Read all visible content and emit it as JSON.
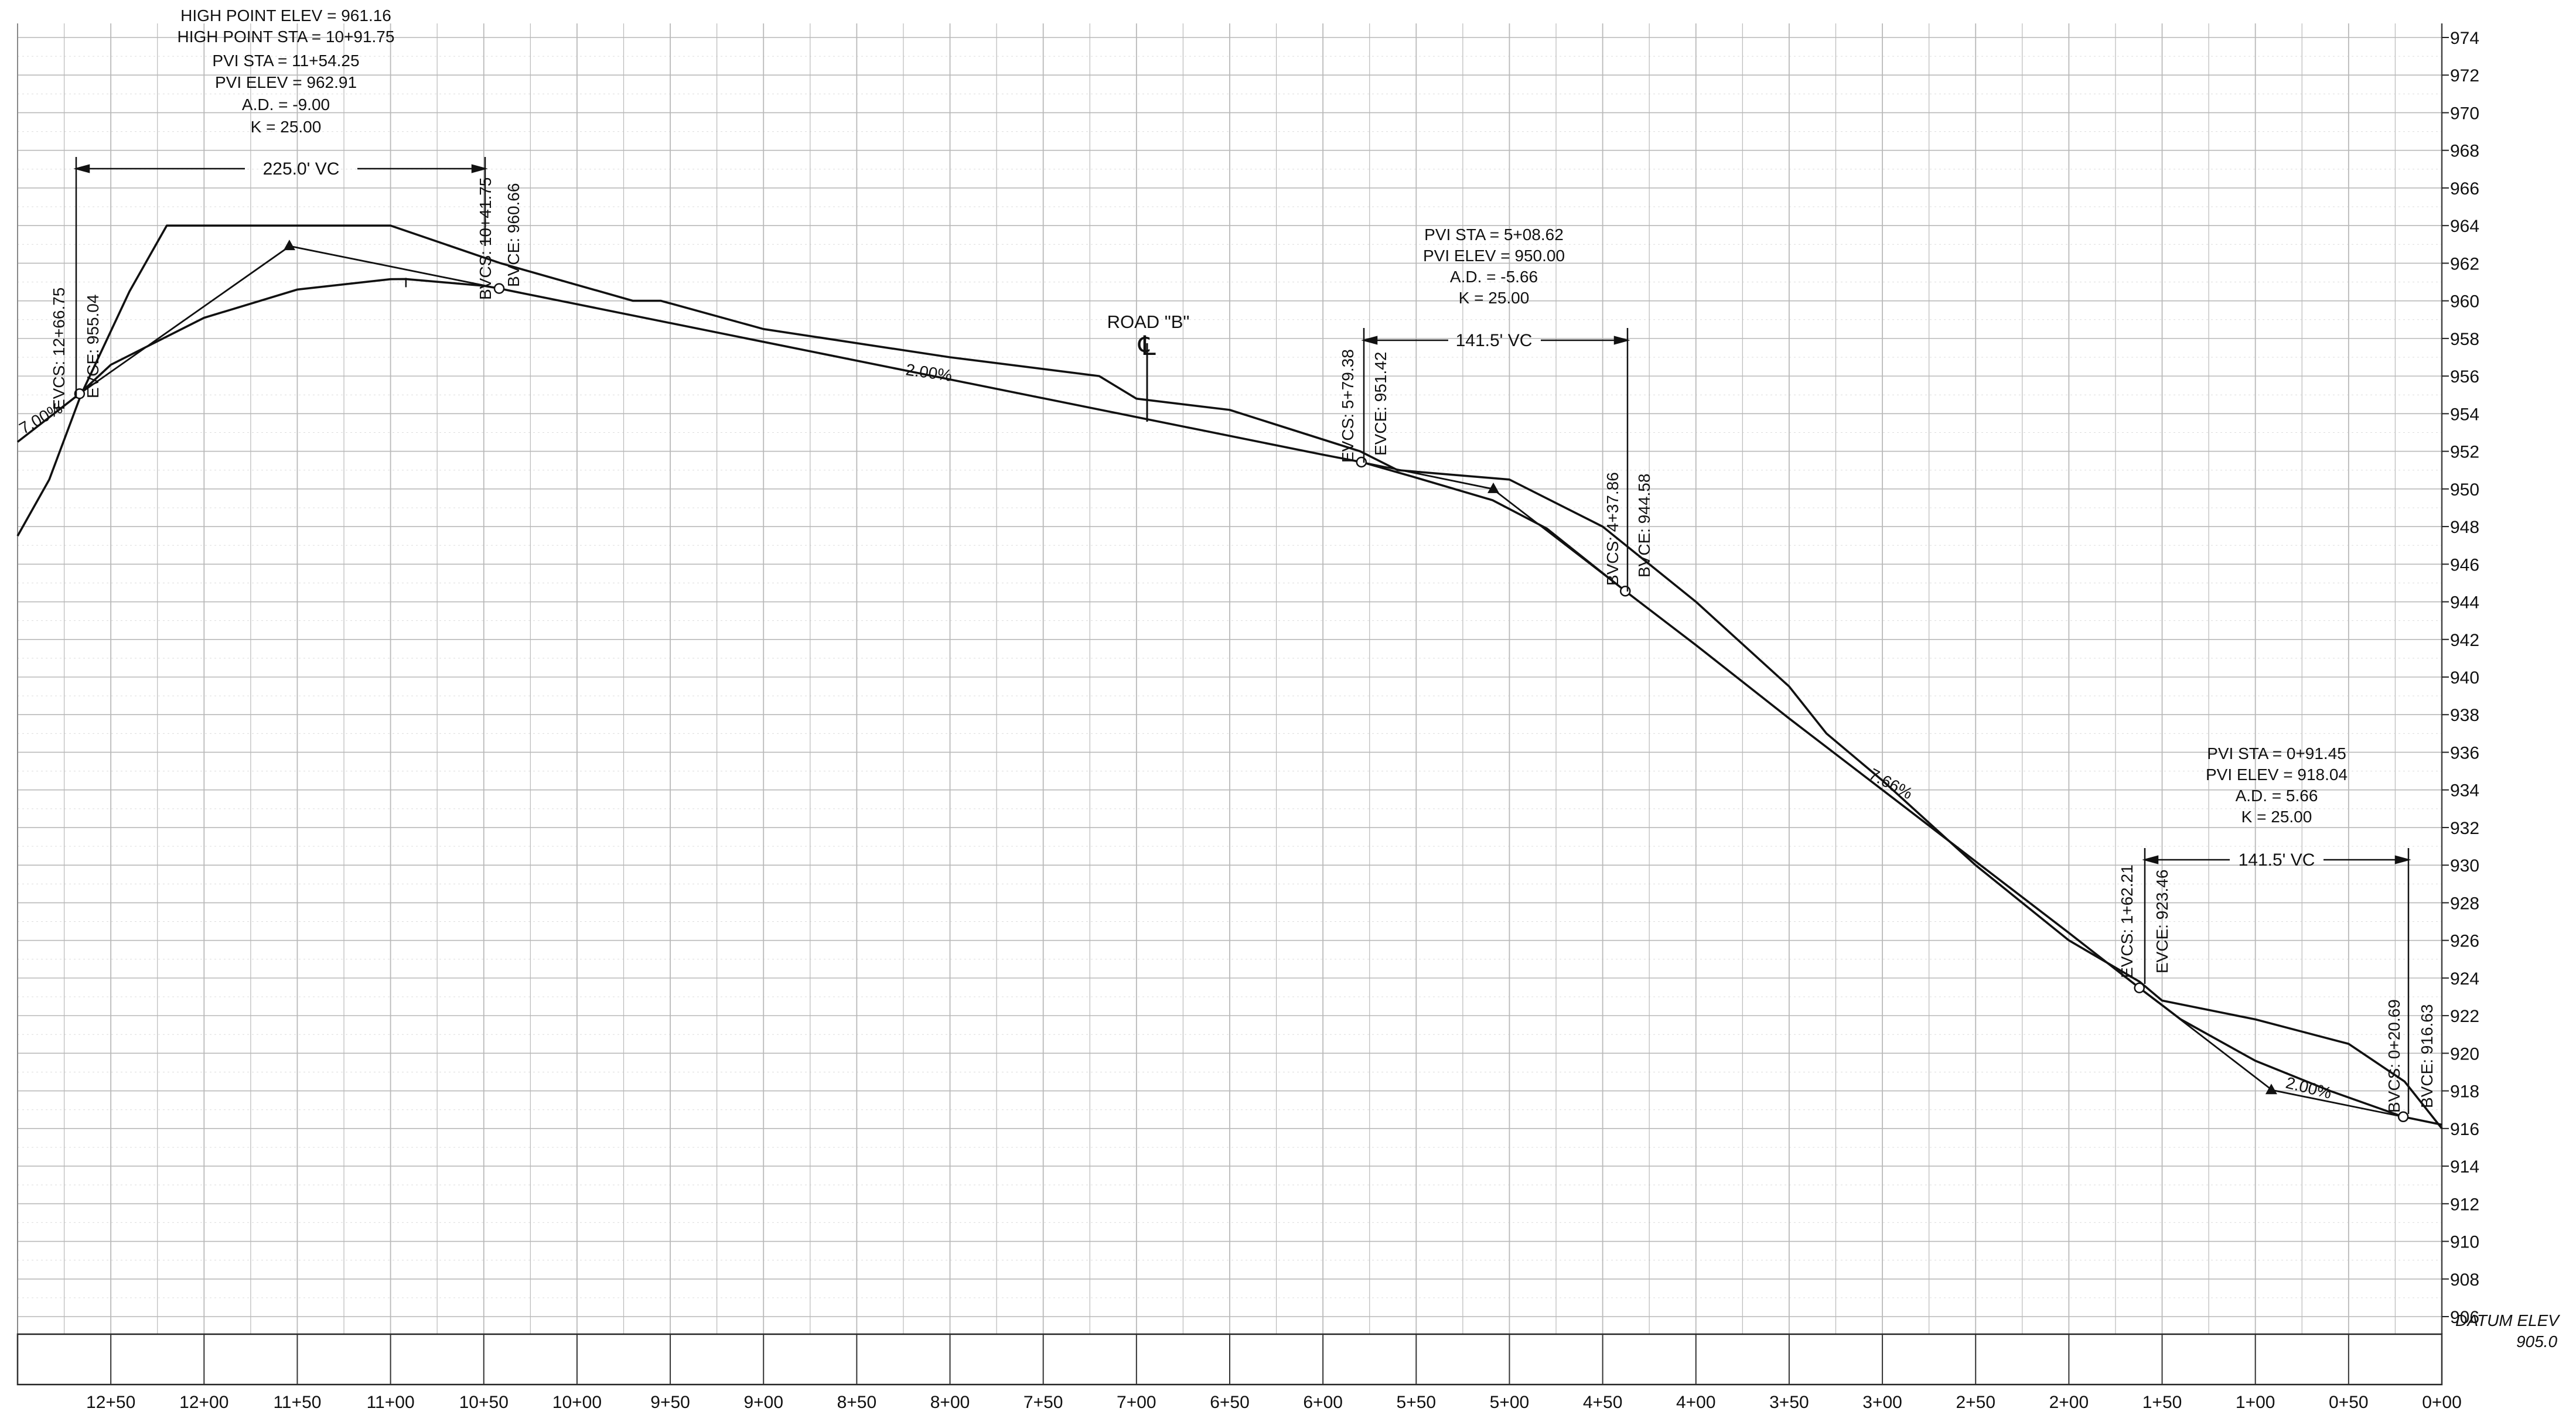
{
  "grid": {
    "elev_min": 906,
    "elev_max": 974,
    "elev_step": 2,
    "sta_left": 1300,
    "sta_right": 0,
    "sta_step": 50,
    "line_color": "#b9b9b9",
    "ink_color": "#111111"
  },
  "elevation_labels": [
    "906",
    "908",
    "910",
    "912",
    "914",
    "916",
    "918",
    "920",
    "922",
    "924",
    "926",
    "928",
    "930",
    "932",
    "934",
    "936",
    "938",
    "940",
    "942",
    "944",
    "946",
    "948",
    "950",
    "952",
    "954",
    "956",
    "958",
    "960",
    "962",
    "964",
    "966",
    "968",
    "970",
    "972",
    "974"
  ],
  "station_labels": [
    "12+50",
    "12+00",
    "11+50",
    "11+00",
    "10+50",
    "10+00",
    "9+50",
    "9+00",
    "8+50",
    "8+00",
    "7+50",
    "7+00",
    "6+50",
    "6+00",
    "5+50",
    "5+00",
    "4+50",
    "4+00",
    "3+50",
    "3+00",
    "2+50",
    "2+00",
    "1+50",
    "1+00",
    "0+50",
    "0+00"
  ],
  "datum": {
    "label": "DATUM ELEV",
    "value": "905.0"
  },
  "curve1_info": {
    "high_point_elev": "HIGH POINT ELEV = 961.16",
    "high_point_sta": "HIGH POINT STA = 10+91.75",
    "pvi_sta": "PVI STA = 11+54.25",
    "pvi_elev": "PVI ELEV = 962.91",
    "ad": "A.D. = -9.00",
    "k": "K = 25.00"
  },
  "curve2_info": {
    "pvi_sta": "PVI STA = 5+08.62",
    "pvi_elev": "PVI ELEV = 950.00",
    "ad": "A.D. = -5.66",
    "k": "K = 25.00"
  },
  "curve3_info": {
    "pvi_sta": "PVI STA = 0+91.45",
    "pvi_elev": "PVI ELEV = 918.04",
    "ad": "A.D. = 5.66",
    "k": "K = 25.00"
  },
  "vc_labels": {
    "c1": "225.0' VC",
    "c2": "141.5' VC",
    "c3": "141.5' VC"
  },
  "vertical_labels": {
    "evcs1": "EVCS: 12+66.75",
    "evce1": "EVCE: 955.04",
    "bvcs1": "BVCS: 10+41.75",
    "bvce1": "BVCE: 960.66",
    "evcs2": "EVCS: 5+79.38",
    "evce2": "EVCE: 951.42",
    "bvcs2": "BVCS: 4+37.86",
    "bvce2": "BVCE: 944.58",
    "evcs3": "EVCS: 1+62.21",
    "evce3": "EVCE: 923.46",
    "bvcs3": "BVCS: 0+20.69",
    "bvce3": "BVCE: 916.63"
  },
  "grade_labels": {
    "g_left": "7.00%",
    "g1": "2.00%",
    "g2": "7.66%",
    "g3": "2.00%"
  },
  "road_label": "ROAD \"B\"",
  "centerline_symbol": "℄",
  "chart_data": {
    "type": "line",
    "x_units": "station (ft)",
    "y_units": "elevation (ft)",
    "xlim": [
      1300,
      0
    ],
    "ylim": [
      906,
      974
    ],
    "grid": true,
    "series": [
      {
        "points": [
          [
            1300,
            947.5
          ],
          [
            1283,
            950.5
          ],
          [
            1266,
            955.0
          ],
          [
            1240,
            960.5
          ],
          [
            1220,
            964.0
          ],
          [
            1150,
            964.0
          ],
          [
            1100,
            964.0
          ],
          [
            1041,
            962.0
          ],
          [
            970,
            960.0
          ],
          [
            955,
            960.0
          ],
          [
            900,
            958.5
          ],
          [
            800,
            957.0
          ],
          [
            720,
            956.0
          ],
          [
            700,
            954.8
          ],
          [
            650,
            954.2
          ],
          [
            580,
            952.0
          ],
          [
            560,
            951.0
          ],
          [
            500,
            950.5
          ],
          [
            450,
            948.0
          ],
          [
            400,
            944.0
          ],
          [
            350,
            939.5
          ],
          [
            330,
            937.0
          ],
          [
            300,
            934.5
          ],
          [
            250,
            930.0
          ],
          [
            200,
            926.0
          ],
          [
            162,
            923.8
          ],
          [
            150,
            922.8
          ],
          [
            100,
            921.8
          ],
          [
            50,
            920.5
          ],
          [
            20,
            918.5
          ],
          [
            0,
            916.0
          ]
        ]
      },
      {
        "points": [
          [
            1300,
            952.5
          ],
          [
            1267,
            955.04
          ],
          [
            1250,
            956.6
          ],
          [
            1200,
            959.1
          ],
          [
            1150,
            960.6
          ],
          [
            1100,
            961.15
          ],
          [
            1092,
            961.16
          ],
          [
            1050,
            960.8
          ],
          [
            1042,
            960.66
          ],
          [
            1000,
            959.82
          ],
          [
            900,
            957.82
          ],
          [
            800,
            955.82
          ],
          [
            700,
            953.82
          ],
          [
            600,
            951.82
          ],
          [
            579,
            951.42
          ],
          [
            550,
            950.6
          ],
          [
            509,
            949.4
          ],
          [
            480,
            947.9
          ],
          [
            438,
            944.58
          ],
          [
            400,
            941.7
          ],
          [
            350,
            937.8
          ],
          [
            300,
            934.0
          ],
          [
            250,
            930.2
          ],
          [
            200,
            926.4
          ],
          [
            162,
            923.46
          ],
          [
            140,
            921.8
          ],
          [
            100,
            919.6
          ],
          [
            60,
            918.0
          ],
          [
            21,
            916.63
          ],
          [
            0,
            916.2
          ]
        ]
      },
      {
        "points": [
          [
            1267,
            955.04
          ],
          [
            1154,
            962.91
          ],
          [
            1042,
            960.66
          ]
        ]
      },
      {
        "points": [
          [
            579,
            951.42
          ],
          [
            509,
            950.0
          ],
          [
            438,
            944.58
          ]
        ]
      },
      {
        "points": [
          [
            162,
            923.46
          ],
          [
            91,
            918.04
          ],
          [
            21,
            916.63
          ]
        ]
      }
    ],
    "vertical_curves": [
      {
        "pvi_sta": 1154.25,
        "pvi_elev": 962.91,
        "length": 225.0
      },
      {
        "pvi_sta": 508.62,
        "pvi_elev": 950.0,
        "length": 141.5
      },
      {
        "pvi_sta": 91.45,
        "pvi_elev": 918.04,
        "length": 141.5
      }
    ],
    "high_point": {
      "sta": 1091.75,
      "elev": 961.16
    },
    "road_crossing_sta": 700
  }
}
